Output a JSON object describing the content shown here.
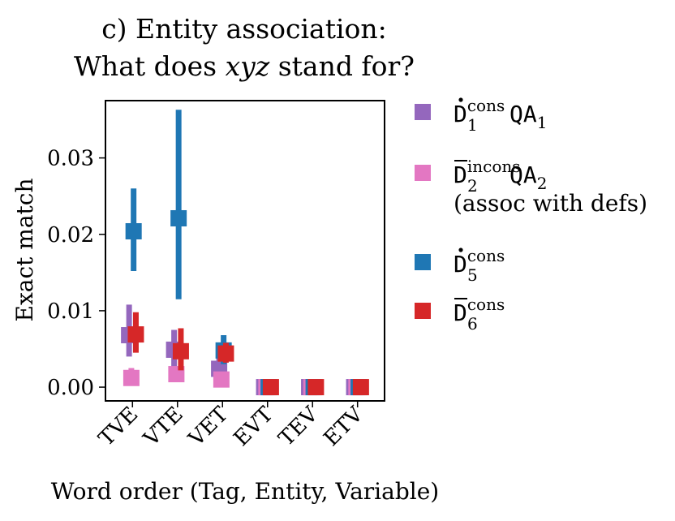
{
  "chart_data": {
    "type": "scatter",
    "title_line1": "c) Entity association:",
    "title_line2_a": "What does ",
    "title_line2_var": "xyz",
    "title_line2_b": " stand for?",
    "xlabel": "Word order (Tag, Entity, Variable)",
    "ylabel": "Exact match",
    "ylim": [
      -0.0018,
      0.0375
    ],
    "yticks": [
      0.0,
      0.01,
      0.02,
      0.03
    ],
    "ytick_labels": [
      "0.00",
      "0.01",
      "0.02",
      "0.03"
    ],
    "categories": [
      "TVE",
      "VTE",
      "VET",
      "EVT",
      "TEV",
      "ETV"
    ],
    "series": [
      {
        "name": "D1 cons QA1",
        "color": "#9467bd",
        "offset": -0.15,
        "values": [
          0.0068,
          0.0049,
          0.0024,
          0.0,
          0.0,
          0.0
        ],
        "err_low": [
          0.004,
          0.0026,
          0.0012,
          0.0,
          0.0,
          0.0
        ],
        "err_high": [
          0.0108,
          0.0075,
          0.004,
          0.0,
          0.0,
          0.0
        ]
      },
      {
        "name": "D2 incons QA2 (assoc with defs)",
        "color": "#e377c2",
        "offset": -0.05,
        "values": [
          0.0012,
          0.0017,
          0.001,
          0.0,
          0.0,
          0.0
        ],
        "err_low": [
          0.0003,
          0.0008,
          0.0002,
          0.0,
          0.0,
          0.0
        ],
        "err_high": [
          0.0025,
          0.0027,
          0.002,
          0.0,
          0.0,
          0.0
        ]
      },
      {
        "name": "D5 cons",
        "color": "#1f77b4",
        "offset": 0.05,
        "values": [
          0.0204,
          0.0221,
          0.0048,
          0.0,
          0.0,
          0.0
        ],
        "err_low": [
          0.0152,
          0.0115,
          0.003,
          0.0,
          0.0,
          0.0
        ],
        "err_high": [
          0.026,
          0.0363,
          0.0068,
          0.0,
          0.0,
          0.0
        ]
      },
      {
        "name": "D6 cons",
        "color": "#d62728",
        "offset": 0.15,
        "values": [
          0.0069,
          0.0047,
          0.0044,
          0.0,
          0.0,
          0.0
        ],
        "err_low": [
          0.0045,
          0.0022,
          0.0032,
          0.0,
          0.0,
          0.0
        ],
        "err_high": [
          0.0098,
          0.0077,
          0.0058,
          0.0,
          0.0,
          0.0
        ]
      }
    ],
    "legend": {
      "location": "right-outside",
      "entries": [
        {
          "name": "D1 cons QA1",
          "base": "D",
          "super": "cons",
          "sub": "1",
          "mark": "dot",
          "suffix": "QA",
          "suffix_sub": "1",
          "extra": ""
        },
        {
          "name": "D2 incons QA2 (assoc with defs)",
          "base": "D",
          "super": "incons",
          "sub": "2",
          "mark": "bar",
          "suffix": "QA",
          "suffix_sub": "2",
          "extra": "(assoc with defs)"
        },
        {
          "name": "D5 cons",
          "base": "D",
          "super": "cons",
          "sub": "5",
          "mark": "dot",
          "suffix": "",
          "suffix_sub": "",
          "extra": ""
        },
        {
          "name": "D6 cons",
          "base": "D",
          "super": "cons",
          "sub": "6",
          "mark": "bar",
          "suffix": "",
          "suffix_sub": "",
          "extra": ""
        }
      ]
    }
  }
}
